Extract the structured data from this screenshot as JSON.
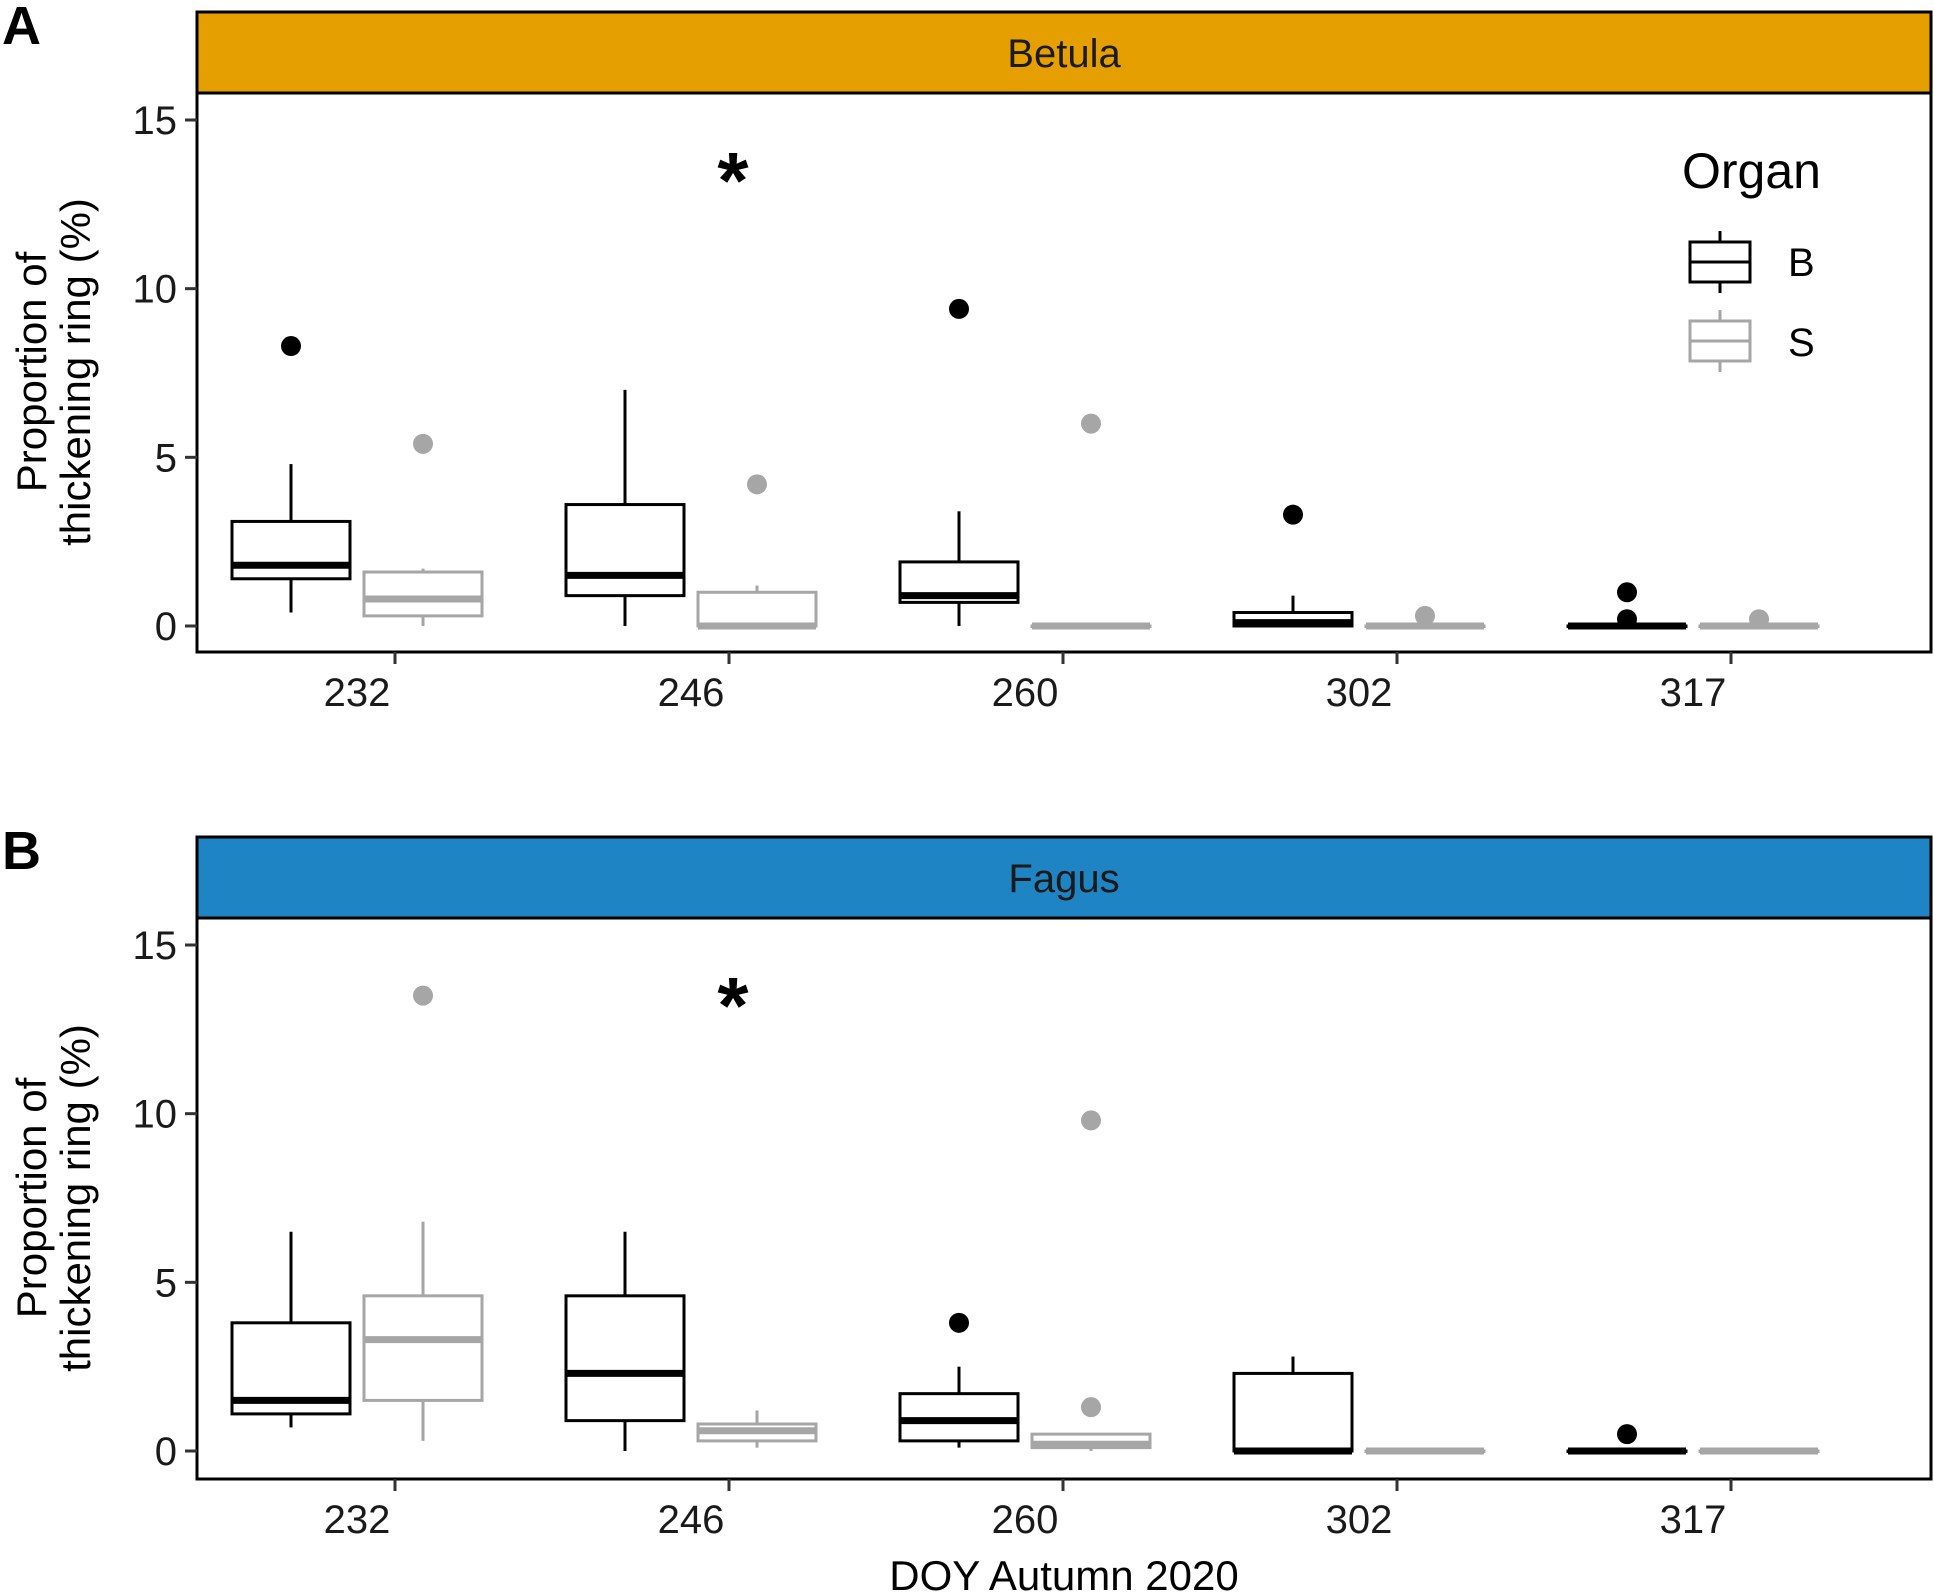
{
  "chart_data": [
    {
      "type": "boxplot",
      "panel_label": "A",
      "strip_title": "Betula",
      "strip_color": "#E69F00",
      "ylabel_line1": "Proportion of",
      "ylabel_line2": "thickening ring (%)",
      "xlabel": "",
      "ylim": [
        0,
        15
      ],
      "yticks": [
        "0",
        "5",
        "10",
        "15"
      ],
      "categories": [
        "232",
        "246",
        "260",
        "302",
        "317"
      ],
      "significance": [
        {
          "category": "246",
          "symbol": "*",
          "y": 13.7
        }
      ],
      "series": [
        {
          "name": "B",
          "color": "#000000",
          "boxes": [
            {
              "min": 0.4,
              "q1": 1.4,
              "median": 1.8,
              "q3": 3.1,
              "max": 4.8,
              "outliers": [
                8.3
              ]
            },
            {
              "min": 0.0,
              "q1": 0.9,
              "median": 1.5,
              "q3": 3.6,
              "max": 7.0,
              "outliers": []
            },
            {
              "min": 0.0,
              "q1": 0.7,
              "median": 0.9,
              "q3": 1.9,
              "max": 3.4,
              "outliers": [
                9.4
              ]
            },
            {
              "min": 0.0,
              "q1": 0.0,
              "median": 0.1,
              "q3": 0.4,
              "max": 0.9,
              "outliers": [
                3.3
              ]
            },
            {
              "min": 0.0,
              "q1": 0.0,
              "median": 0.0,
              "q3": 0.0,
              "max": 0.0,
              "outliers": [
                1.0,
                0.2
              ]
            }
          ]
        },
        {
          "name": "S",
          "color": "#A6A6A6",
          "boxes": [
            {
              "min": 0.0,
              "q1": 0.3,
              "median": 0.8,
              "q3": 1.6,
              "max": 1.7,
              "outliers": [
                5.4
              ]
            },
            {
              "min": 0.0,
              "q1": 0.0,
              "median": 0.0,
              "q3": 1.0,
              "max": 1.2,
              "outliers": [
                4.2
              ]
            },
            {
              "min": 0.0,
              "q1": 0.0,
              "median": 0.0,
              "q3": 0.0,
              "max": 0.0,
              "outliers": [
                6.0
              ]
            },
            {
              "min": 0.0,
              "q1": 0.0,
              "median": 0.0,
              "q3": 0.0,
              "max": 0.0,
              "outliers": [
                0.3
              ]
            },
            {
              "min": 0.0,
              "q1": 0.0,
              "median": 0.0,
              "q3": 0.0,
              "max": 0.0,
              "outliers": [
                0.2
              ]
            }
          ]
        }
      ]
    },
    {
      "type": "boxplot",
      "panel_label": "B",
      "strip_title": "Fagus",
      "strip_color": "#1F84C3",
      "ylabel_line1": "Proportion of",
      "ylabel_line2": "thickening ring (%)",
      "xlabel": "DOY Autumn 2020",
      "ylim": [
        0,
        15
      ],
      "yticks": [
        "0",
        "5",
        "10",
        "15"
      ],
      "categories": [
        "232",
        "246",
        "260",
        "302",
        "317"
      ],
      "significance": [
        {
          "category": "246",
          "symbol": "*",
          "y": 13.7
        }
      ],
      "series": [
        {
          "name": "B",
          "color": "#000000",
          "boxes": [
            {
              "min": 0.7,
              "q1": 1.1,
              "median": 1.5,
              "q3": 3.8,
              "max": 6.5,
              "outliers": []
            },
            {
              "min": 0.0,
              "q1": 0.9,
              "median": 2.3,
              "q3": 4.6,
              "max": 6.5,
              "outliers": []
            },
            {
              "min": 0.1,
              "q1": 0.3,
              "median": 0.9,
              "q3": 1.7,
              "max": 2.5,
              "outliers": [
                3.8
              ]
            },
            {
              "min": 0.0,
              "q1": 0.0,
              "median": 0.0,
              "q3": 2.3,
              "max": 2.8,
              "outliers": []
            },
            {
              "min": 0.0,
              "q1": 0.0,
              "median": 0.0,
              "q3": 0.0,
              "max": 0.0,
              "outliers": [
                0.5
              ]
            }
          ]
        },
        {
          "name": "S",
          "color": "#A6A6A6",
          "boxes": [
            {
              "min": 0.3,
              "q1": 1.5,
              "median": 3.3,
              "q3": 4.6,
              "max": 6.8,
              "outliers": [
                13.5
              ]
            },
            {
              "min": 0.1,
              "q1": 0.3,
              "median": 0.6,
              "q3": 0.8,
              "max": 1.2,
              "outliers": []
            },
            {
              "min": 0.0,
              "q1": 0.1,
              "median": 0.2,
              "q3": 0.5,
              "max": 0.5,
              "outliers": [
                9.8,
                1.3
              ]
            },
            {
              "min": 0.0,
              "q1": 0.0,
              "median": 0.0,
              "q3": 0.0,
              "max": 0.0,
              "outliers": []
            },
            {
              "min": 0.0,
              "q1": 0.0,
              "median": 0.0,
              "q3": 0.0,
              "max": 0.0,
              "outliers": []
            }
          ]
        }
      ]
    }
  ],
  "legend": {
    "title": "Organ",
    "entries": [
      {
        "label": "B",
        "color": "#000000"
      },
      {
        "label": "S",
        "color": "#A6A6A6"
      }
    ]
  }
}
